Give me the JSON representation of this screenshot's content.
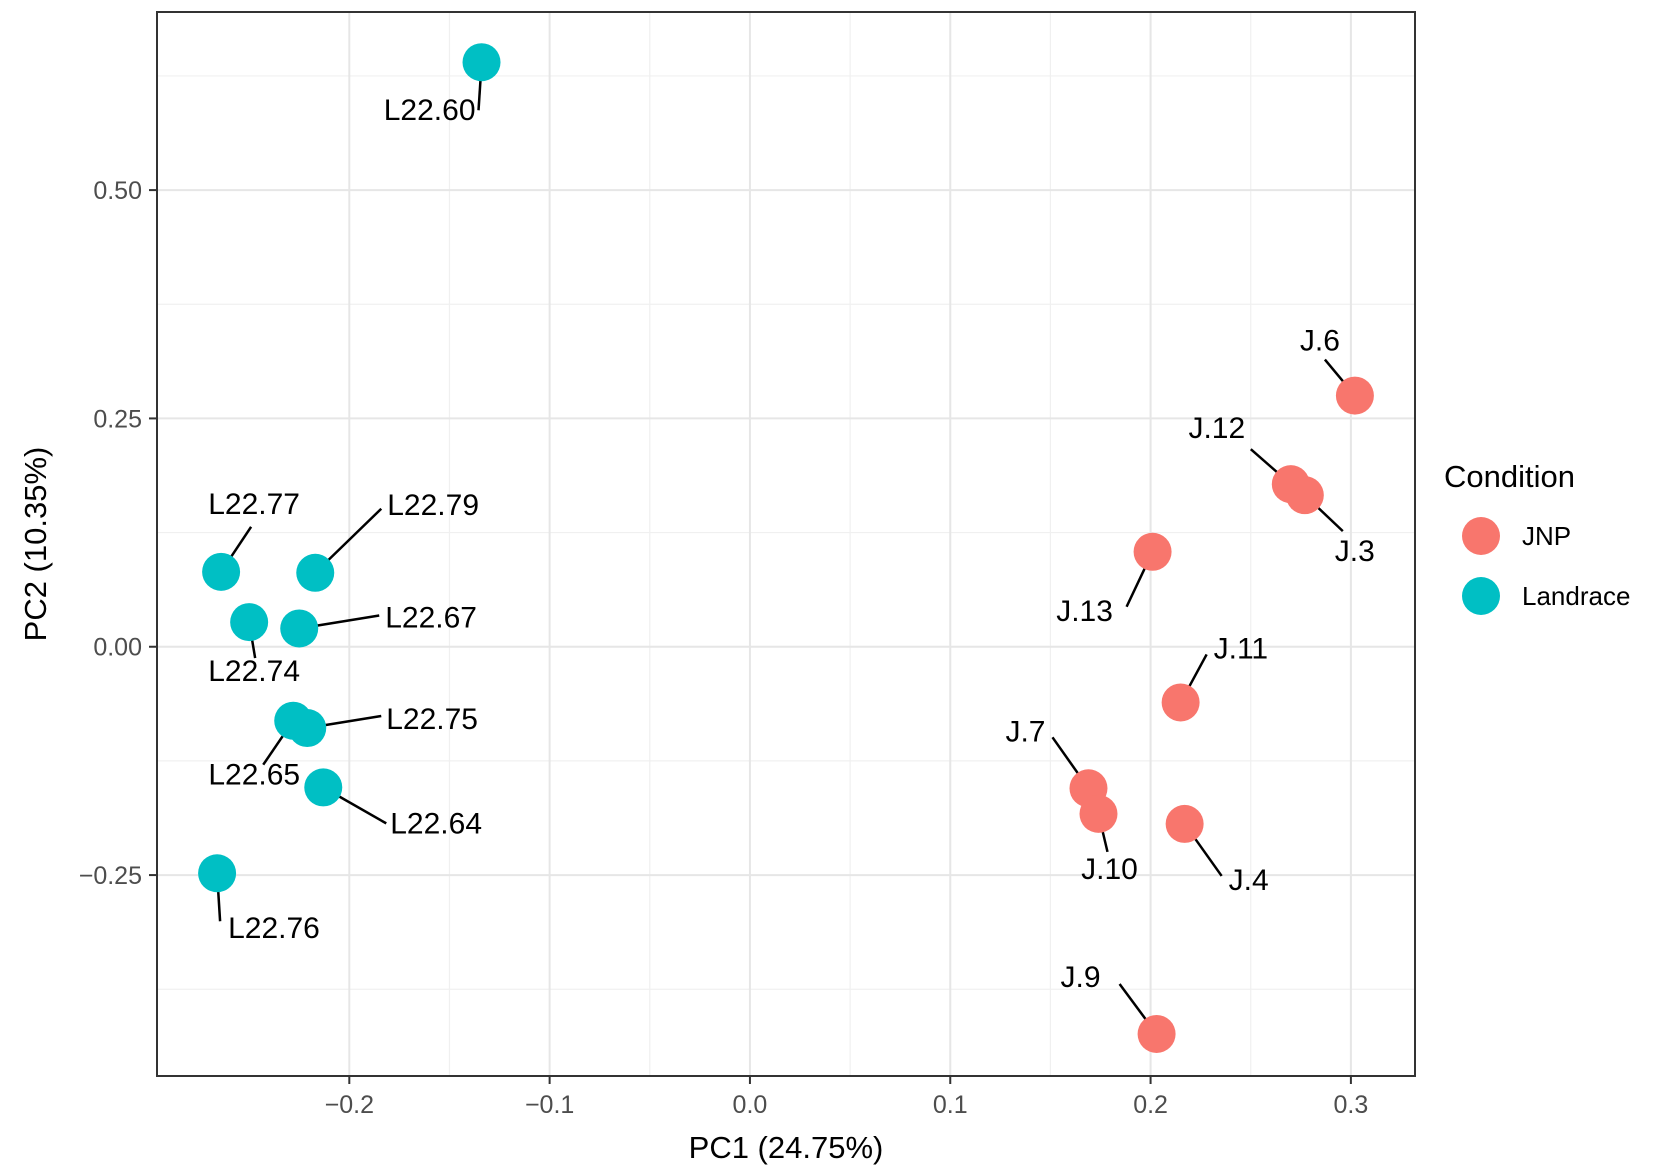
{
  "chart_data": {
    "type": "scatter",
    "xlabel": "PC1 (24.75%)",
    "ylabel": "PC2 (10.35%)",
    "xlim": [
      -0.296,
      0.332
    ],
    "ylim": [
      -0.47,
      0.695
    ],
    "x_ticks": [
      {
        "value": -0.2,
        "label": "−0.2"
      },
      {
        "value": -0.1,
        "label": "−0.1"
      },
      {
        "value": 0.0,
        "label": "0.0"
      },
      {
        "value": 0.1,
        "label": "0.1"
      },
      {
        "value": 0.2,
        "label": "0.2"
      },
      {
        "value": 0.3,
        "label": "0.3"
      }
    ],
    "y_ticks": [
      {
        "value": -0.25,
        "label": "−0.25"
      },
      {
        "value": 0.0,
        "label": "0.00"
      },
      {
        "value": 0.25,
        "label": "0.25"
      },
      {
        "value": 0.5,
        "label": "0.50"
      }
    ],
    "grid": true,
    "legend": {
      "title": "Condition",
      "position": "right",
      "entries": [
        {
          "name": "JNP",
          "color": "#F8766D"
        },
        {
          "name": "Landrace",
          "color": "#00BFC4"
        }
      ]
    },
    "series": [
      {
        "name": "JNP",
        "color": "#F8766D",
        "points": [
          {
            "label": "J.6",
            "x": 0.302,
            "y": 0.275
          },
          {
            "label": "J.12",
            "x": 0.27,
            "y": 0.178
          },
          {
            "label": "J.3",
            "x": 0.277,
            "y": 0.166
          },
          {
            "label": "J.13",
            "x": 0.201,
            "y": 0.104
          },
          {
            "label": "J.11",
            "x": 0.215,
            "y": -0.061
          },
          {
            "label": "J.7",
            "x": 0.169,
            "y": -0.155
          },
          {
            "label": "J.10",
            "x": 0.174,
            "y": -0.183
          },
          {
            "label": "J.4",
            "x": 0.217,
            "y": -0.194
          },
          {
            "label": "J.9",
            "x": 0.203,
            "y": -0.424
          }
        ]
      },
      {
        "name": "Landrace",
        "color": "#00BFC4",
        "points": [
          {
            "label": "L22.60",
            "x": -0.134,
            "y": 0.64
          },
          {
            "label": "L22.77",
            "x": -0.264,
            "y": 0.082
          },
          {
            "label": "L22.79",
            "x": -0.217,
            "y": 0.081
          },
          {
            "label": "L22.74",
            "x": -0.25,
            "y": 0.027
          },
          {
            "label": "L22.67",
            "x": -0.225,
            "y": 0.02
          },
          {
            "label": "L22.65",
            "x": -0.228,
            "y": -0.081
          },
          {
            "label": "L22.75",
            "x": -0.221,
            "y": -0.089
          },
          {
            "label": "L22.64",
            "x": -0.213,
            "y": -0.154
          },
          {
            "label": "L22.76",
            "x": -0.266,
            "y": -0.248
          }
        ]
      }
    ]
  }
}
